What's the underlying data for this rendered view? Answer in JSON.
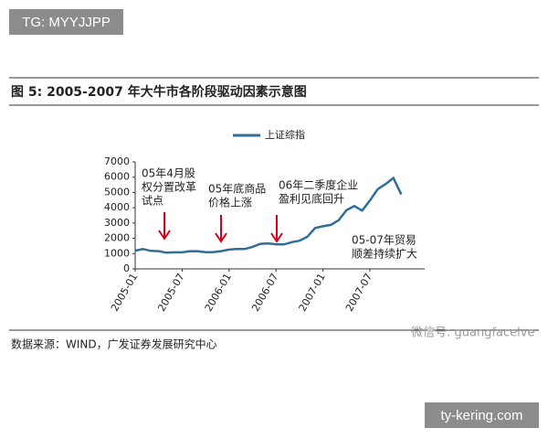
{
  "badge": "TG: MYYJJPP",
  "footer_badge": "ty-kering.com",
  "chart_data": {
    "type": "line",
    "title": "图 5: 2005-2007 年大牛市各阶段驱动因素示意图",
    "source": "数据来源：WIND，广发证券发展研究中心",
    "watermark": "微信号: guangfacelve",
    "x": [
      "2005-01",
      "2005-02",
      "2005-03",
      "2005-04",
      "2005-05",
      "2005-06",
      "2005-07",
      "2005-08",
      "2005-09",
      "2005-10",
      "2005-11",
      "2005-12",
      "2006-01",
      "2006-02",
      "2006-03",
      "2006-04",
      "2006-05",
      "2006-06",
      "2006-07",
      "2006-08",
      "2006-09",
      "2006-10",
      "2006-11",
      "2006-12",
      "2007-01",
      "2007-02",
      "2007-03",
      "2007-04",
      "2007-05",
      "2007-06",
      "2007-07",
      "2007-08",
      "2007-09",
      "2007-10",
      "2007-11"
    ],
    "series": [
      {
        "name": "上证综指",
        "color": "#2e6e99",
        "values": [
          1190,
          1300,
          1180,
          1160,
          1060,
          1080,
          1080,
          1160,
          1155,
          1090,
          1100,
          1160,
          1260,
          1300,
          1300,
          1440,
          1640,
          1670,
          1610,
          1600,
          1750,
          1840,
          2100,
          2675,
          2790,
          2880,
          3180,
          3840,
          4110,
          3820,
          4470,
          5220,
          5550,
          5950,
          4870
        ]
      }
    ],
    "xlim": [
      "2005-01",
      "2008-02"
    ],
    "xticks": [
      "2005-01",
      "2005-07",
      "2006-01",
      "2006-07",
      "2007-01",
      "2007-07"
    ],
    "ylim": [
      0,
      7000
    ],
    "yticks": [
      0,
      1000,
      2000,
      3000,
      4000,
      5000,
      6000,
      7000
    ],
    "annotations": [
      {
        "lines": [
          "05年4月股",
          "权分置改革",
          "试点"
        ]
      },
      {
        "lines": [
          "05年底商品",
          "价格上涨"
        ]
      },
      {
        "lines": [
          "06年二季度企业",
          "盈利见底回升"
        ]
      },
      {
        "lines": [
          "05-07年贸易",
          "顺差持续扩大"
        ]
      }
    ]
  }
}
